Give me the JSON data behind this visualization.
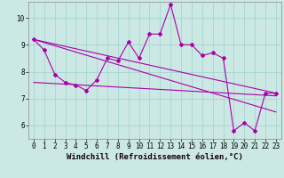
{
  "xlabel": "Windchill (Refroidissement éolien,°C)",
  "background_color": "#cce8e4",
  "grid_color": "#aad8d4",
  "line_color": "#aa00aa",
  "xlim": [
    -0.5,
    23.5
  ],
  "ylim": [
    5.5,
    10.6
  ],
  "yticks": [
    6,
    7,
    8,
    9,
    10
  ],
  "xticks": [
    0,
    1,
    2,
    3,
    4,
    5,
    6,
    7,
    8,
    9,
    10,
    11,
    12,
    13,
    14,
    15,
    16,
    17,
    18,
    19,
    20,
    21,
    22,
    23
  ],
  "main_x": [
    0,
    1,
    2,
    3,
    4,
    5,
    6,
    7,
    8,
    9,
    10,
    11,
    12,
    13,
    14,
    15,
    16,
    17,
    18,
    19,
    20,
    21,
    22,
    23
  ],
  "main_y": [
    9.2,
    8.8,
    7.9,
    7.6,
    7.5,
    7.3,
    7.7,
    8.5,
    8.4,
    9.1,
    8.5,
    9.4,
    9.4,
    10.5,
    9.0,
    9.0,
    8.6,
    8.7,
    8.5,
    5.8,
    6.1,
    5.8,
    7.2,
    7.2
  ],
  "trend1_x": [
    0,
    23
  ],
  "trend1_y": [
    9.2,
    7.2
  ],
  "trend2_x": [
    0,
    23
  ],
  "trend2_y": [
    9.2,
    6.5
  ],
  "trend3_x": [
    0,
    23
  ],
  "trend3_y": [
    7.6,
    7.1
  ],
  "xlabel_fontsize": 6.5,
  "tick_fontsize": 5.5
}
